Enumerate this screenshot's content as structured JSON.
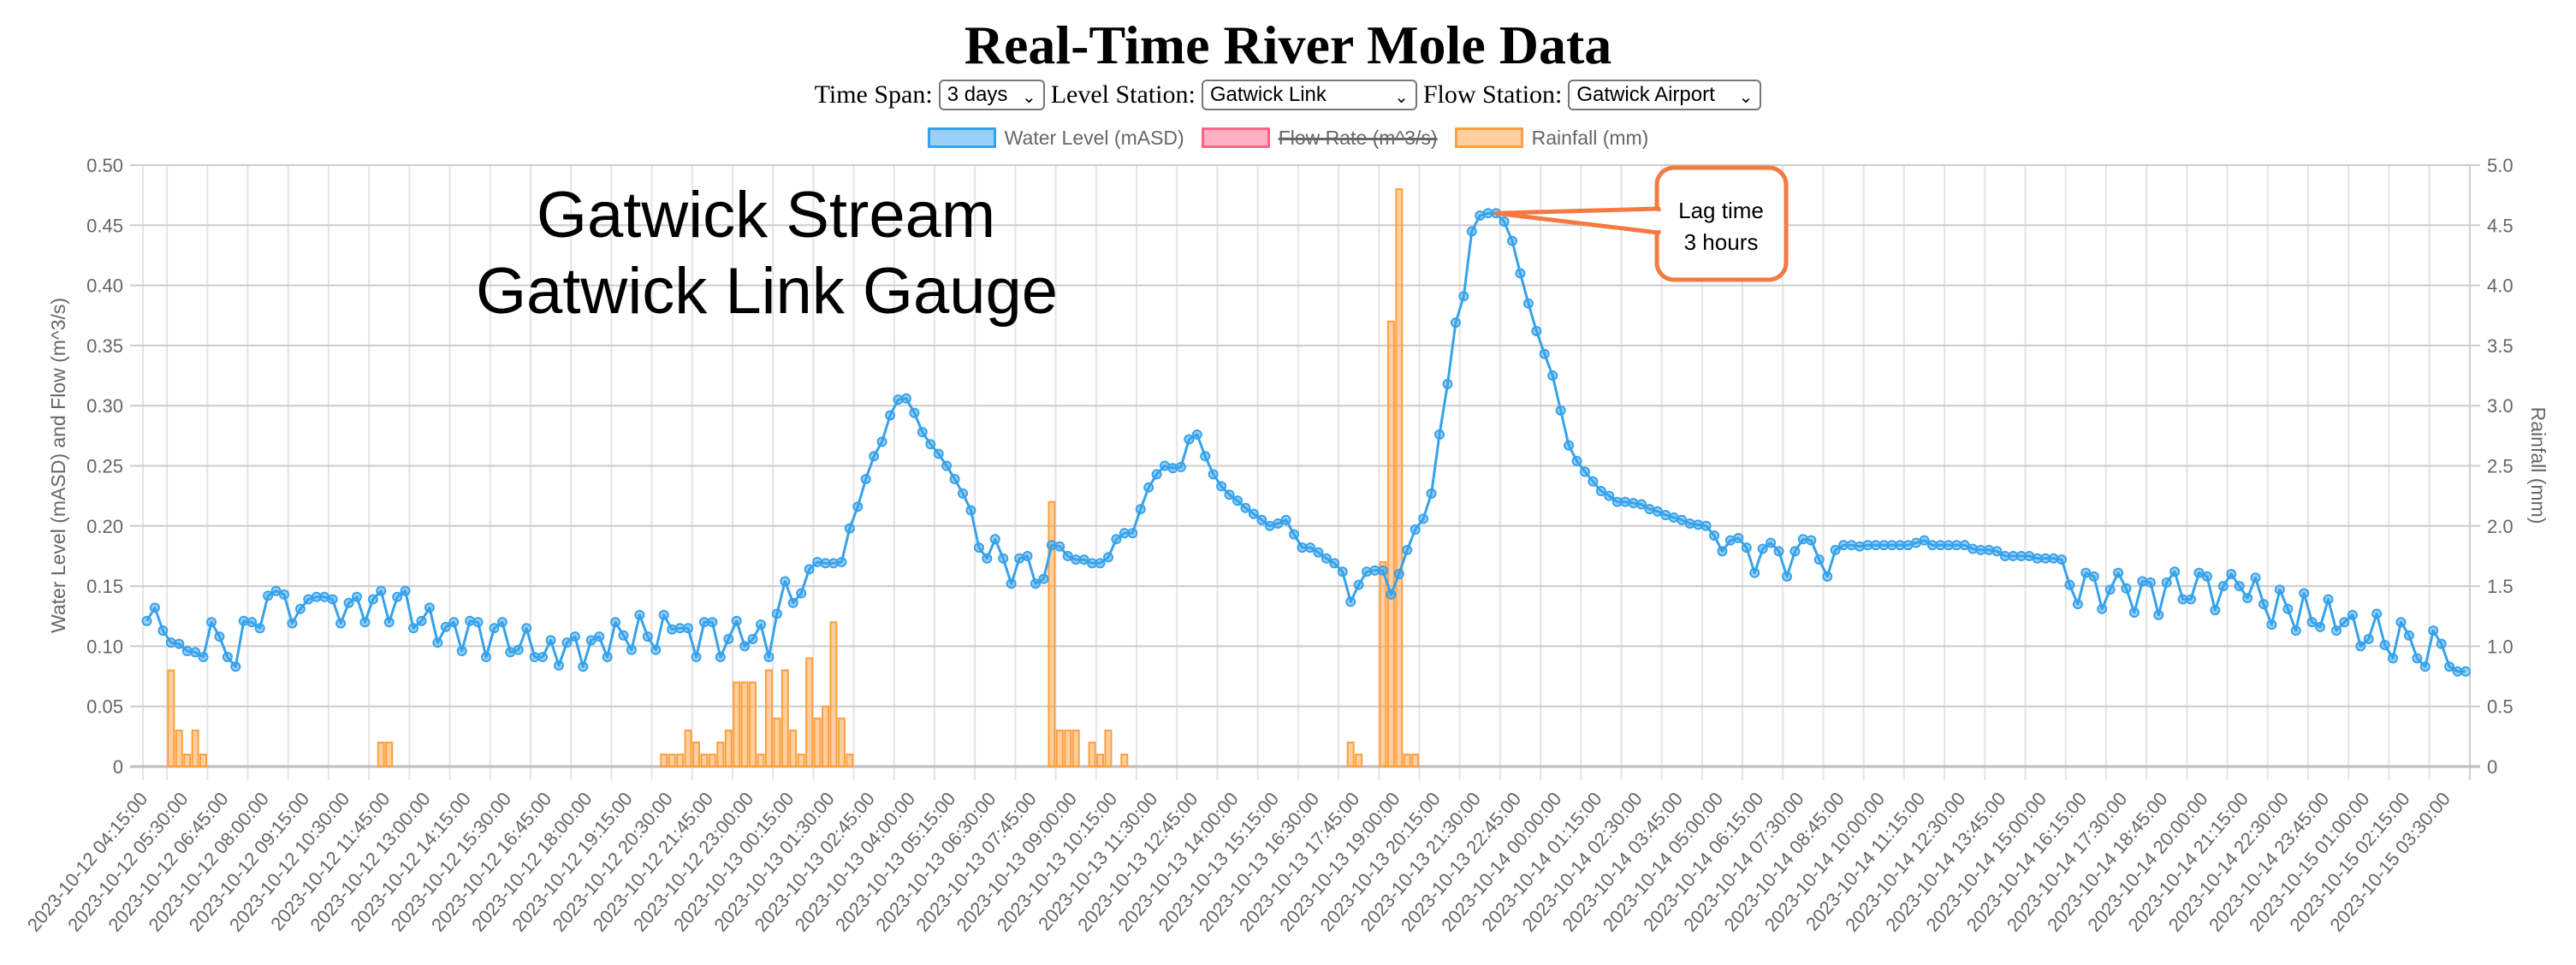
{
  "page": {
    "title": "Real-Time River Mole Data",
    "controls": {
      "time_span_label": "Time Span:",
      "time_span_value": "3 days",
      "level_station_label": "Level Station:",
      "level_station_value": "Gatwick Link",
      "flow_station_label": "Flow Station:",
      "flow_station_value": "Gatwick Airport",
      "chevron": "⌄"
    }
  },
  "colors": {
    "water_level": "#36a2eb",
    "water_level_fill": "rgba(54,162,235,0.5)",
    "flow_rate": "#ff6384",
    "flow_rate_fill": "rgba(255,99,132,0.5)",
    "rainfall": "#ff9f40",
    "rainfall_fill": "rgba(255,159,64,0.5)",
    "callout": "#f47a42"
  },
  "annotations": {
    "overlay_line1": "Gatwick Stream",
    "overlay_line2": "Gatwick Link Gauge",
    "callout_line1": "Lag time",
    "callout_line2": "3 hours",
    "callout_point_index": 167
  },
  "chart_data": {
    "type": "line+bar",
    "title": "Real-Time River Mole Data",
    "legend": [
      {
        "label": "Water Level (mASD)",
        "hidden": false
      },
      {
        "label": "Flow Rate (m^3/s)",
        "hidden": true
      },
      {
        "label": "Rainfall (mm)",
        "hidden": false
      }
    ],
    "legend_position": "top",
    "ylabel_left": "Water Level (mASD) and Flow (m^3/s)",
    "ylabel_right": "Rainfall (mm)",
    "ylim_left": [
      0,
      0.5
    ],
    "ylim_right": [
      0,
      5
    ],
    "yticks_left": [
      "0",
      "0.05",
      "0.10",
      "0.15",
      "0.20",
      "0.25",
      "0.30",
      "0.35",
      "0.40",
      "0.45",
      "0.50"
    ],
    "yticks_right": [
      "0",
      "0.5",
      "1.0",
      "1.5",
      "2.0",
      "2.5",
      "3.0",
      "3.5",
      "4.0",
      "4.5",
      "5.0"
    ],
    "x_interval_minutes": 15,
    "x_tick_every": 5,
    "grid": true,
    "x_tick_labels": [
      "2023-10-12 04:15:00",
      "2023-10-12 05:30:00",
      "2023-10-12 06:45:00",
      "2023-10-12 08:00:00",
      "2023-10-12 09:15:00",
      "2023-10-12 10:30:00",
      "2023-10-12 11:45:00",
      "2023-10-12 13:00:00",
      "2023-10-12 14:15:00",
      "2023-10-12 15:30:00",
      "2023-10-12 16:45:00",
      "2023-10-12 18:00:00",
      "2023-10-12 19:15:00",
      "2023-10-12 20:30:00",
      "2023-10-12 21:45:00",
      "2023-10-12 23:00:00",
      "2023-10-13 00:15:00",
      "2023-10-13 01:30:00",
      "2023-10-13 02:45:00",
      "2023-10-13 04:00:00",
      "2023-10-13 05:15:00",
      "2023-10-13 06:30:00",
      "2023-10-13 07:45:00",
      "2023-10-13 09:00:00",
      "2023-10-13 10:15:00",
      "2023-10-13 11:30:00",
      "2023-10-13 12:45:00",
      "2023-10-13 14:00:00",
      "2023-10-13 15:15:00",
      "2023-10-13 16:30:00",
      "2023-10-13 17:45:00",
      "2023-10-13 19:00:00",
      "2023-10-13 20:15:00",
      "2023-10-13 21:30:00",
      "2023-10-13 22:45:00",
      "2023-10-14 00:00:00",
      "2023-10-14 01:15:00",
      "2023-10-14 02:30:00",
      "2023-10-14 03:45:00",
      "2023-10-14 05:00:00",
      "2023-10-14 06:15:00",
      "2023-10-14 07:30:00",
      "2023-10-14 08:45:00",
      "2023-10-14 10:00:00",
      "2023-10-14 11:15:00",
      "2023-10-14 12:30:00",
      "2023-10-14 13:45:00",
      "2023-10-14 15:00:00",
      "2023-10-14 16:15:00",
      "2023-10-14 17:30:00",
      "2023-10-14 18:45:00",
      "2023-10-14 20:00:00",
      "2023-10-14 21:15:00",
      "2023-10-14 22:30:00",
      "2023-10-14 23:45:00",
      "2023-10-15 01:00:00",
      "2023-10-15 02:15:00",
      "2023-10-15 03:30:00"
    ],
    "series": [
      {
        "name": "Water Level (mASD)",
        "type": "line",
        "axis": "left",
        "values": [
          0.121,
          0.132,
          0.113,
          0.103,
          0.102,
          0.096,
          0.095,
          0.091,
          0.12,
          0.108,
          0.091,
          0.083,
          0.121,
          0.12,
          0.115,
          0.142,
          0.146,
          0.143,
          0.119,
          0.131,
          0.139,
          0.141,
          0.141,
          0.139,
          0.119,
          0.136,
          0.141,
          0.12,
          0.139,
          0.146,
          0.12,
          0.141,
          0.146,
          0.115,
          0.121,
          0.132,
          0.103,
          0.116,
          0.12,
          0.096,
          0.121,
          0.12,
          0.091,
          0.115,
          0.12,
          0.095,
          0.097,
          0.115,
          0.091,
          0.091,
          0.105,
          0.084,
          0.103,
          0.108,
          0.083,
          0.105,
          0.108,
          0.091,
          0.12,
          0.109,
          0.097,
          0.126,
          0.108,
          0.097,
          0.126,
          0.114,
          0.115,
          0.115,
          0.091,
          0.12,
          0.12,
          0.091,
          0.106,
          0.121,
          0.1,
          0.106,
          0.118,
          0.091,
          0.127,
          0.154,
          0.136,
          0.144,
          0.164,
          0.17,
          0.169,
          0.169,
          0.17,
          0.198,
          0.216,
          0.239,
          0.258,
          0.27,
          0.292,
          0.305,
          0.306,
          0.294,
          0.278,
          0.268,
          0.26,
          0.25,
          0.239,
          0.227,
          0.213,
          0.182,
          0.173,
          0.189,
          0.173,
          0.152,
          0.173,
          0.175,
          0.152,
          0.156,
          0.184,
          0.183,
          0.175,
          0.172,
          0.172,
          0.169,
          0.169,
          0.174,
          0.189,
          0.194,
          0.194,
          0.214,
          0.232,
          0.243,
          0.25,
          0.248,
          0.249,
          0.272,
          0.276,
          0.258,
          0.243,
          0.233,
          0.226,
          0.221,
          0.215,
          0.21,
          0.205,
          0.2,
          0.202,
          0.205,
          0.193,
          0.182,
          0.182,
          0.178,
          0.173,
          0.169,
          0.162,
          0.137,
          0.151,
          0.162,
          0.163,
          0.163,
          0.143,
          0.16,
          0.18,
          0.197,
          0.206,
          0.227,
          0.276,
          0.318,
          0.369,
          0.391,
          0.445,
          0.458,
          0.46,
          0.46,
          0.453,
          0.437,
          0.41,
          0.385,
          0.362,
          0.343,
          0.325,
          0.296,
          0.267,
          0.254,
          0.245,
          0.237,
          0.229,
          0.225,
          0.22,
          0.22,
          0.219,
          0.218,
          0.214,
          0.212,
          0.209,
          0.207,
          0.205,
          0.202,
          0.201,
          0.2,
          0.192,
          0.179,
          0.188,
          0.19,
          0.182,
          0.161,
          0.181,
          0.186,
          0.179,
          0.158,
          0.179,
          0.189,
          0.188,
          0.172,
          0.158,
          0.18,
          0.184,
          0.184,
          0.183,
          0.184,
          0.184,
          0.184,
          0.184,
          0.184,
          0.184,
          0.186,
          0.188,
          0.184,
          0.184,
          0.184,
          0.184,
          0.184,
          0.181,
          0.18,
          0.18,
          0.179,
          0.175,
          0.175,
          0.175,
          0.175,
          0.173,
          0.173,
          0.173,
          0.172,
          0.151,
          0.135,
          0.161,
          0.158,
          0.131,
          0.147,
          0.161,
          0.148,
          0.128,
          0.154,
          0.153,
          0.126,
          0.153,
          0.162,
          0.139,
          0.139,
          0.161,
          0.158,
          0.13,
          0.15,
          0.16,
          0.15,
          0.14,
          0.157,
          0.135,
          0.118,
          0.147,
          0.131,
          0.113,
          0.144,
          0.12,
          0.116,
          0.139,
          0.113,
          0.12,
          0.126,
          0.1,
          0.106,
          0.127,
          0.101,
          0.09,
          0.12,
          0.109,
          0.09,
          0.083,
          0.113,
          0.102,
          0.083,
          0.079,
          0.079
        ]
      },
      {
        "name": "Rainfall (mm)",
        "type": "bar",
        "axis": "right",
        "values": [
          0,
          0,
          0,
          0.8,
          0.3,
          0.1,
          0.3,
          0.1,
          0,
          0,
          0,
          0,
          0,
          0,
          0,
          0,
          0,
          0,
          0,
          0,
          0,
          0,
          0,
          0,
          0,
          0,
          0,
          0,
          0,
          0.2,
          0.2,
          0,
          0,
          0,
          0,
          0,
          0,
          0,
          0,
          0,
          0,
          0,
          0,
          0,
          0,
          0,
          0,
          0,
          0,
          0,
          0,
          0,
          0,
          0,
          0,
          0,
          0,
          0,
          0,
          0,
          0,
          0,
          0,
          0,
          0.1,
          0.1,
          0.1,
          0.3,
          0.2,
          0.1,
          0.1,
          0.2,
          0.3,
          0.7,
          0.7,
          0.7,
          0.1,
          0.8,
          0.4,
          0.8,
          0.3,
          0.1,
          0.9,
          0.4,
          0.5,
          1.2,
          0.4,
          0.1,
          0,
          0,
          0,
          0,
          0,
          0,
          0,
          0,
          0,
          0,
          0,
          0,
          0,
          0,
          0,
          0,
          0,
          0,
          0,
          0,
          0,
          0,
          0,
          0,
          2.2,
          0.3,
          0.3,
          0.3,
          0,
          0.2,
          0.1,
          0.3,
          0,
          0.1,
          0,
          0,
          0,
          0,
          0,
          0,
          0,
          0,
          0,
          0,
          0,
          0,
          0,
          0,
          0,
          0,
          0,
          0,
          0,
          0,
          0,
          0,
          0,
          0,
          0,
          0,
          0,
          0.2,
          0.1,
          0,
          0,
          1.7,
          3.7,
          4.8,
          0.1,
          0.1,
          0,
          0,
          0,
          0,
          0,
          0,
          0,
          0,
          0,
          0,
          0,
          0,
          0,
          0,
          0,
          0,
          0,
          0,
          0,
          0,
          0,
          0,
          0,
          0,
          0,
          0,
          0,
          0,
          0,
          0,
          0,
          0,
          0,
          0,
          0,
          0,
          0,
          0,
          0,
          0,
          0,
          0,
          0,
          0,
          0,
          0,
          0,
          0,
          0,
          0,
          0,
          0,
          0,
          0,
          0,
          0,
          0,
          0,
          0,
          0,
          0,
          0,
          0,
          0,
          0,
          0,
          0,
          0,
          0,
          0,
          0,
          0,
          0,
          0,
          0,
          0,
          0,
          0,
          0,
          0,
          0,
          0,
          0,
          0,
          0,
          0,
          0,
          0,
          0,
          0,
          0,
          0,
          0,
          0,
          0,
          0,
          0,
          0,
          0,
          0,
          0,
          0,
          0,
          0,
          0,
          0,
          0,
          0,
          0,
          0,
          0,
          0,
          0,
          0,
          0,
          0,
          0,
          0,
          0,
          0,
          0,
          0,
          0,
          0,
          0,
          0,
          0,
          0,
          0,
          0
        ]
      }
    ]
  }
}
